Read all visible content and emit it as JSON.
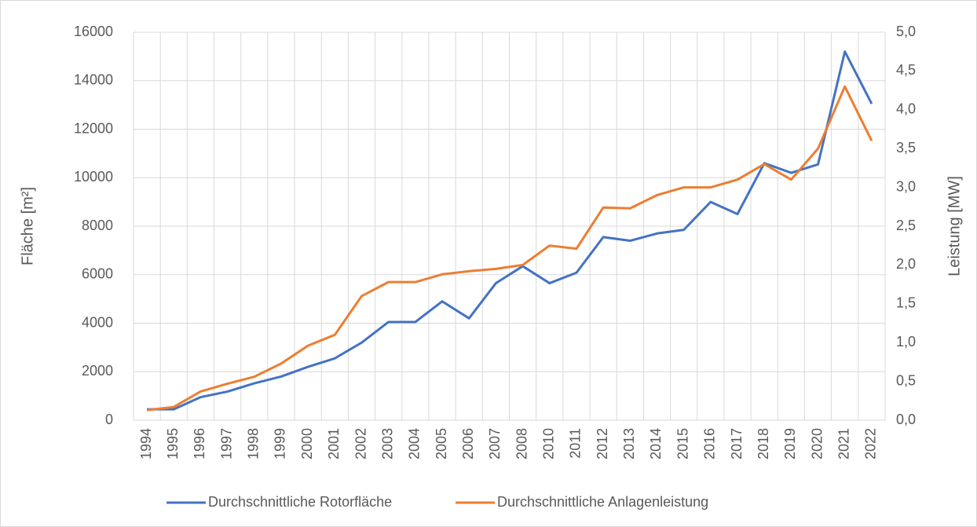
{
  "chart_data": {
    "type": "line",
    "y_label": "Fläche [m²]",
    "y2_label": "Leistung [MW]",
    "categories": [
      "1994",
      "1995",
      "1996",
      "1997",
      "1998",
      "1999",
      "2000",
      "2001",
      "2002",
      "2003",
      "2004",
      "2005",
      "2006",
      "2007",
      "2008",
      "2010",
      "2011",
      "2012",
      "2013",
      "2014",
      "2015",
      "2016",
      "2017",
      "2018",
      "2019",
      "2020",
      "2021",
      "2022"
    ],
    "series": [
      {
        "name": "Durchschnittliche Rotorfläche",
        "color": "#4472c4",
        "values": [
          450,
          450,
          950,
          1180,
          1520,
          1800,
          2200,
          2550,
          3200,
          4050,
          4050,
          4900,
          4200,
          5650,
          6350,
          5650,
          6080,
          7550,
          7400,
          7700,
          7850,
          9000,
          8500,
          10600,
          10200,
          10550,
          15200,
          13050
        ]
      },
      {
        "name": "Durchschnittliche Anlagenleistung",
        "color": "#ed7d31",
        "axis": "y2",
        "values": [
          0.13,
          0.17,
          0.37,
          0.47,
          0.56,
          0.73,
          0.96,
          1.1,
          1.6,
          1.78,
          1.78,
          1.88,
          1.92,
          1.95,
          2.0,
          2.25,
          2.21,
          2.74,
          2.73,
          2.9,
          3.0,
          3.0,
          3.1,
          3.3,
          3.1,
          3.5,
          4.3,
          3.6
        ]
      }
    ],
    "ylim": [
      0,
      16000
    ],
    "yticks": [
      0,
      2000,
      4000,
      6000,
      8000,
      10000,
      12000,
      14000,
      16000
    ],
    "y2lim": [
      0,
      5
    ],
    "y2ticks": [
      {
        "value": 0,
        "label": "0,0"
      },
      {
        "value": 0.5,
        "label": "0,5"
      },
      {
        "value": 1,
        "label": "1,0"
      },
      {
        "value": 1.5,
        "label": "1,5"
      },
      {
        "value": 2,
        "label": "2,0"
      },
      {
        "value": 2.5,
        "label": "2,5"
      },
      {
        "value": 3,
        "label": "3,0"
      },
      {
        "value": 3.5,
        "label": "3,5"
      },
      {
        "value": 4,
        "label": "4,0"
      },
      {
        "value": 4.5,
        "label": "4,5"
      },
      {
        "value": 5,
        "label": "5,0"
      }
    ],
    "grid": true,
    "legend": "bottom"
  }
}
